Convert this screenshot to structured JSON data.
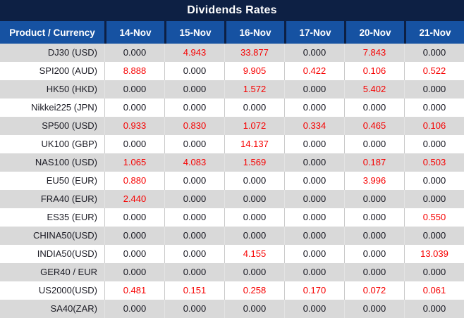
{
  "table": {
    "title": "Dividends Rates",
    "product_header": "Product / Currency",
    "date_headers": [
      "14-Nov",
      "15-Nov",
      "16-Nov",
      "17-Nov",
      "20-Nov",
      "21-Nov"
    ],
    "rows": [
      {
        "product": "DJ30 (USD)",
        "values": [
          "0.000",
          "4.943",
          "33.877",
          "0.000",
          "7.843",
          "0.000"
        ]
      },
      {
        "product": "SPI200 (AUD)",
        "values": [
          "8.888",
          "0.000",
          "9.905",
          "0.422",
          "0.106",
          "0.522"
        ]
      },
      {
        "product": "HK50 (HKD)",
        "values": [
          "0.000",
          "0.000",
          "1.572",
          "0.000",
          "5.402",
          "0.000"
        ]
      },
      {
        "product": "Nikkei225 (JPN)",
        "values": [
          "0.000",
          "0.000",
          "0.000",
          "0.000",
          "0.000",
          "0.000"
        ]
      },
      {
        "product": "SP500 (USD)",
        "values": [
          "0.933",
          "0.830",
          "1.072",
          "0.334",
          "0.465",
          "0.106"
        ]
      },
      {
        "product": "UK100 (GBP)",
        "values": [
          "0.000",
          "0.000",
          "14.137",
          "0.000",
          "0.000",
          "0.000"
        ]
      },
      {
        "product": "NAS100 (USD)",
        "values": [
          "1.065",
          "4.083",
          "1.569",
          "0.000",
          "0.187",
          "0.503"
        ]
      },
      {
        "product": "EU50 (EUR)",
        "values": [
          "0.880",
          "0.000",
          "0.000",
          "0.000",
          "3.996",
          "0.000"
        ]
      },
      {
        "product": "FRA40 (EUR)",
        "values": [
          "2.440",
          "0.000",
          "0.000",
          "0.000",
          "0.000",
          "0.000"
        ]
      },
      {
        "product": "ES35 (EUR)",
        "values": [
          "0.000",
          "0.000",
          "0.000",
          "0.000",
          "0.000",
          "0.550"
        ]
      },
      {
        "product": "CHINA50(USD)",
        "values": [
          "0.000",
          "0.000",
          "0.000",
          "0.000",
          "0.000",
          "0.000"
        ]
      },
      {
        "product": "INDIA50(USD)",
        "values": [
          "0.000",
          "0.000",
          "4.155",
          "0.000",
          "0.000",
          "13.039"
        ]
      },
      {
        "product": "GER40 / EUR",
        "values": [
          "0.000",
          "0.000",
          "0.000",
          "0.000",
          "0.000",
          "0.000"
        ]
      },
      {
        "product": "US2000(USD)",
        "values": [
          "0.481",
          "0.151",
          "0.258",
          "0.170",
          "0.072",
          "0.061"
        ]
      },
      {
        "product": "SA40(ZAR)",
        "values": [
          "0.000",
          "0.000",
          "0.000",
          "0.000",
          "0.000",
          "0.000"
        ]
      }
    ]
  },
  "colors": {
    "title_navy": "#0d2044",
    "header_blue": "#1652a2",
    "row_gray": "#d9d9d9",
    "row_white": "#ffffff",
    "grid_line": "#c9c9c9",
    "zero_value": "#15151f",
    "nonzero_value": "#f70000"
  }
}
